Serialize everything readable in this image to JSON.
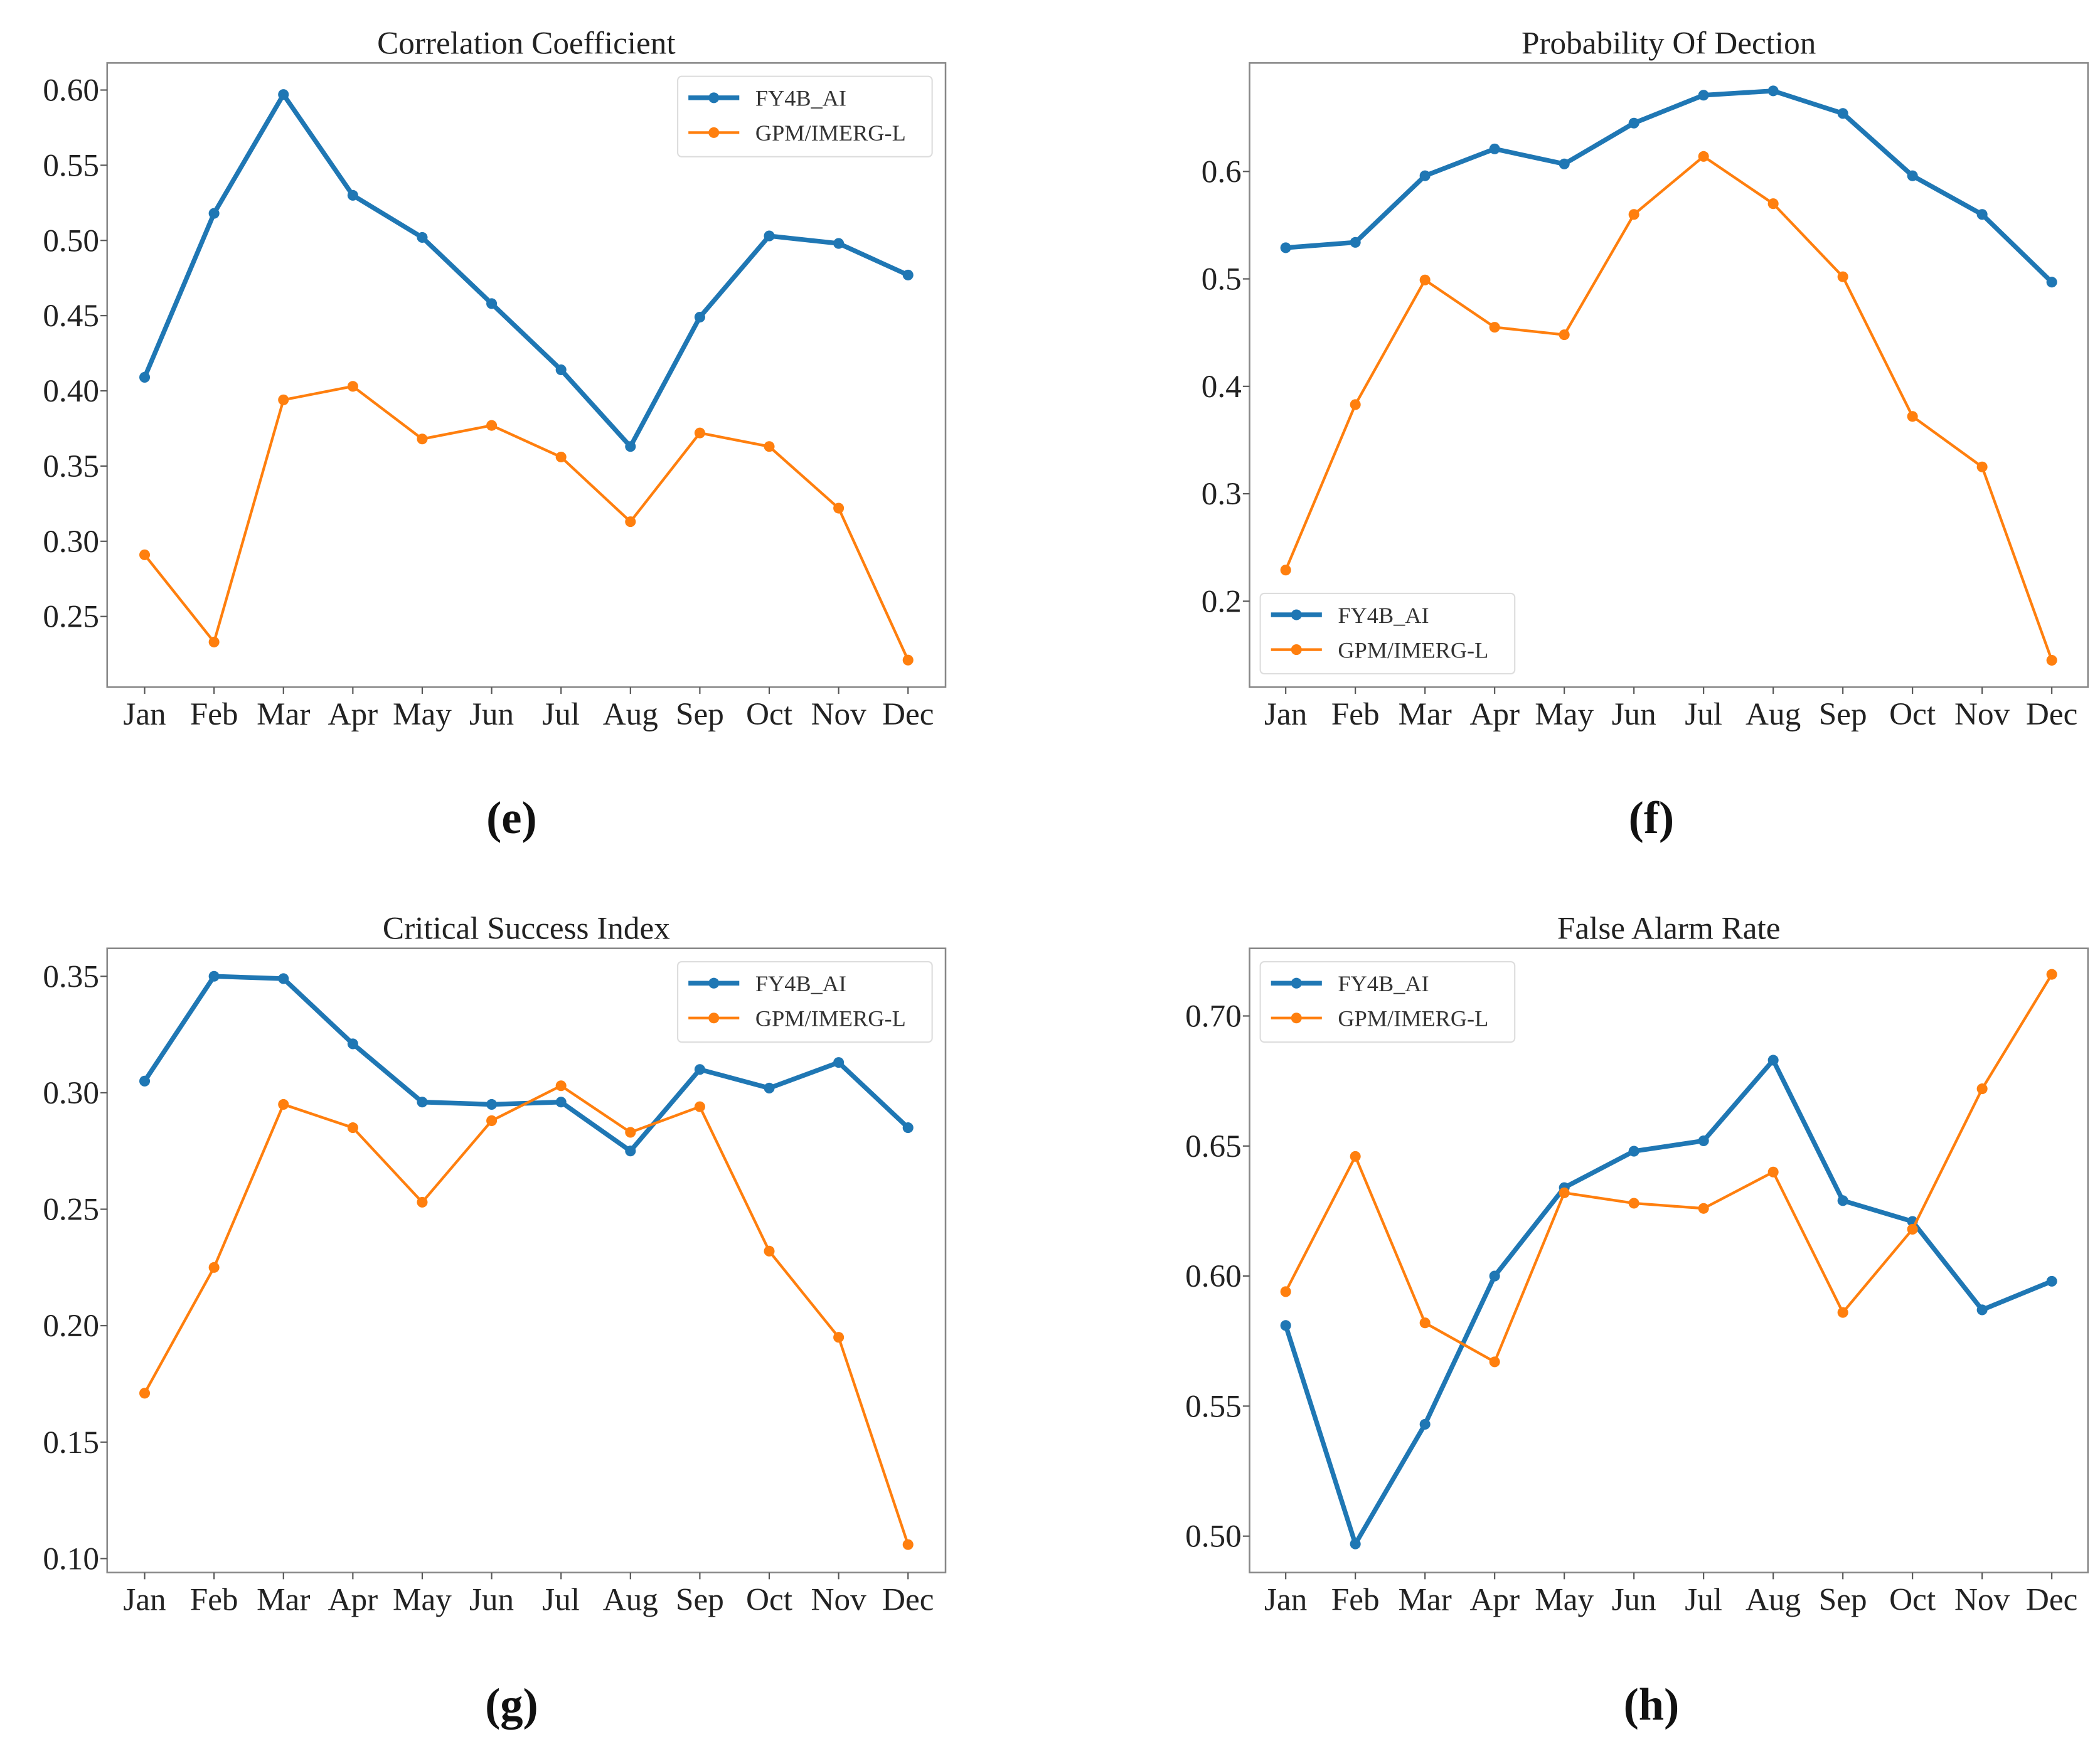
{
  "chart_data": [
    {
      "type": "line",
      "panel_label": "(e)",
      "title": "Correlation Coefficient",
      "xlabel": "",
      "ylabel": "",
      "categories": [
        "Jan",
        "Feb",
        "Mar",
        "Apr",
        "May",
        "Jun",
        "Jul",
        "Aug",
        "Sep",
        "Oct",
        "Nov",
        "Dec"
      ],
      "ylim": [
        0.203,
        0.618
      ],
      "yticks": [
        "0.25",
        "0.30",
        "0.35",
        "0.40",
        "0.45",
        "0.50",
        "0.55",
        "0.60"
      ],
      "legend_position": "top-right",
      "series": [
        {
          "name": "FY4B_AI",
          "color": "#1f77b4",
          "values": [
            0.409,
            0.518,
            0.597,
            0.53,
            0.502,
            0.458,
            0.414,
            0.363,
            0.449,
            0.503,
            0.498,
            0.477
          ]
        },
        {
          "name": "GPM/IMERG-L",
          "color": "#ff7f0e",
          "values": [
            0.291,
            0.233,
            0.394,
            0.403,
            0.368,
            0.377,
            0.356,
            0.313,
            0.372,
            0.363,
            0.322,
            0.221
          ]
        }
      ]
    },
    {
      "type": "line",
      "panel_label": "(f)",
      "title": "Probability Of Dection",
      "xlabel": "",
      "ylabel": "",
      "categories": [
        "Jan",
        "Feb",
        "Mar",
        "Apr",
        "May",
        "Jun",
        "Jul",
        "Aug",
        "Sep",
        "Oct",
        "Nov",
        "Dec"
      ],
      "ylim": [
        0.12,
        0.701
      ],
      "yticks": [
        "0.2",
        "0.3",
        "0.4",
        "0.5",
        "0.6"
      ],
      "legend_position": "bottom-left",
      "series": [
        {
          "name": "FY4B_AI",
          "color": "#1f77b4",
          "values": [
            0.529,
            0.534,
            0.596,
            0.621,
            0.607,
            0.645,
            0.671,
            0.675,
            0.654,
            0.596,
            0.56,
            0.497
          ]
        },
        {
          "name": "GPM/IMERG-L",
          "color": "#ff7f0e",
          "values": [
            0.229,
            0.383,
            0.499,
            0.455,
            0.448,
            0.56,
            0.614,
            0.57,
            0.502,
            0.372,
            0.325,
            0.145
          ]
        }
      ]
    },
    {
      "type": "line",
      "panel_label": "(g)",
      "title": "Critical Success Index",
      "xlabel": "",
      "ylabel": "",
      "categories": [
        "Jan",
        "Feb",
        "Mar",
        "Apr",
        "May",
        "Jun",
        "Jul",
        "Aug",
        "Sep",
        "Oct",
        "Nov",
        "Dec"
      ],
      "ylim": [
        0.094,
        0.362
      ],
      "yticks": [
        "0.10",
        "0.15",
        "0.20",
        "0.25",
        "0.30",
        "0.35"
      ],
      "legend_position": "top-right",
      "series": [
        {
          "name": "FY4B_AI",
          "color": "#1f77b4",
          "values": [
            0.305,
            0.35,
            0.349,
            0.321,
            0.296,
            0.295,
            0.296,
            0.275,
            0.31,
            0.302,
            0.313,
            0.285
          ]
        },
        {
          "name": "GPM/IMERG-L",
          "color": "#ff7f0e",
          "values": [
            0.171,
            0.225,
            0.295,
            0.285,
            0.253,
            0.288,
            0.303,
            0.283,
            0.294,
            0.232,
            0.195,
            0.106
          ]
        }
      ]
    },
    {
      "type": "line",
      "panel_label": "(h)",
      "title": "False Alarm Rate",
      "xlabel": "",
      "ylabel": "",
      "categories": [
        "Jan",
        "Feb",
        "Mar",
        "Apr",
        "May",
        "Jun",
        "Jul",
        "Aug",
        "Sep",
        "Oct",
        "Nov",
        "Dec"
      ],
      "ylim": [
        0.486,
        0.726
      ],
      "yticks": [
        "0.50",
        "0.55",
        "0.60",
        "0.65",
        "0.70"
      ],
      "legend_position": "top-left",
      "series": [
        {
          "name": "FY4B_AI",
          "color": "#1f77b4",
          "values": [
            0.581,
            0.497,
            0.543,
            0.6,
            0.634,
            0.648,
            0.652,
            0.683,
            0.629,
            0.621,
            0.587,
            0.598
          ]
        },
        {
          "name": "GPM/IMERG-L",
          "color": "#ff7f0e",
          "values": [
            0.594,
            0.646,
            0.582,
            0.567,
            0.632,
            0.628,
            0.626,
            0.64,
            0.586,
            0.618,
            0.672,
            0.716
          ]
        }
      ]
    }
  ]
}
